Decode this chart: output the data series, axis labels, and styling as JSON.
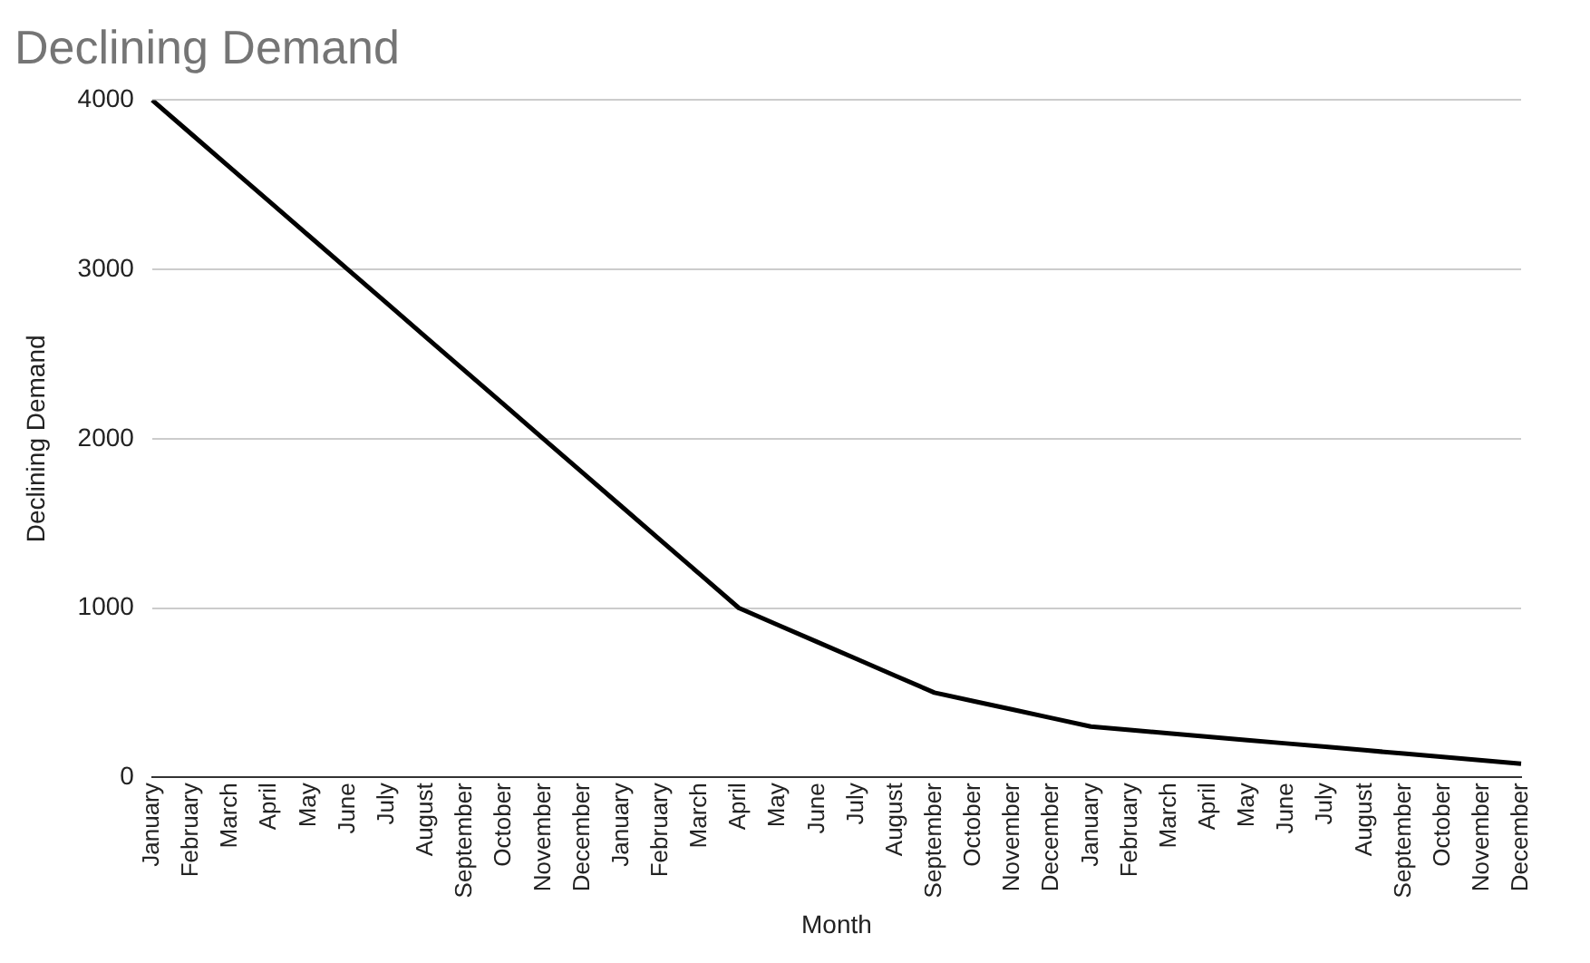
{
  "chart_data": {
    "type": "line",
    "title": "Declining Demand",
    "xlabel": "Month",
    "ylabel": "Declining Demand",
    "categories": [
      "January",
      "February",
      "March",
      "April",
      "May",
      "June",
      "July",
      "August",
      "September",
      "October",
      "November",
      "December",
      "January",
      "February",
      "March",
      "April",
      "May",
      "June",
      "July",
      "August",
      "September",
      "October",
      "November",
      "December",
      "January",
      "February",
      "March",
      "April",
      "May",
      "June",
      "July",
      "August",
      "September",
      "October",
      "November",
      "December"
    ],
    "series": [
      {
        "color": "#000000",
        "values": [
          4000,
          3800,
          3600,
          3400,
          3200,
          3000,
          2800,
          2600,
          2400,
          2200,
          2000,
          1800,
          1600,
          1400,
          1200,
          1000,
          900,
          800,
          700,
          600,
          500,
          450,
          400,
          350,
          300,
          280,
          260,
          240,
          220,
          200,
          180,
          160,
          140,
          120,
          100,
          80
        ]
      }
    ],
    "ylim": [
      0,
      4000
    ],
    "yticks": [
      0,
      1000,
      2000,
      3000,
      4000
    ],
    "grid": "y",
    "legend": false,
    "marker": "none",
    "line_style": "solid"
  }
}
